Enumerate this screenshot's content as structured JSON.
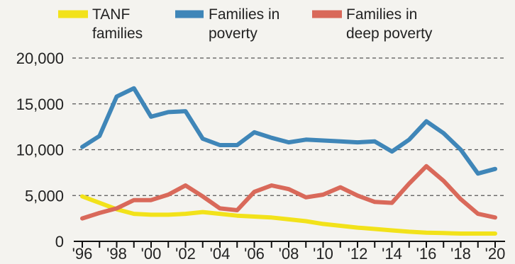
{
  "chart_data": {
    "type": "line",
    "x": [
      1996,
      1997,
      1998,
      1999,
      2000,
      2001,
      2002,
      2003,
      2004,
      2005,
      2006,
      2007,
      2008,
      2009,
      2010,
      2011,
      2012,
      2013,
      2014,
      2015,
      2016,
      2017,
      2018,
      2019,
      2020
    ],
    "x_tick_labels": [
      "'96",
      "'98",
      "'00",
      "'02",
      "'04",
      "'06",
      "'08",
      "'10",
      "'12",
      "'14",
      "'16",
      "'18",
      "'20"
    ],
    "y_tick_labels": [
      "20,000",
      "15,000",
      "10,000",
      "5,000",
      "0"
    ],
    "ylim": [
      0,
      20000
    ],
    "grid": "horizontal dashed",
    "legend_position": "top",
    "series": [
      {
        "name": "TANF families",
        "legend_lines": [
          "TANF",
          "families"
        ],
        "color": "#f2e21a",
        "values": [
          4900,
          4200,
          3500,
          3000,
          2900,
          2900,
          3000,
          3200,
          3000,
          2800,
          2700,
          2600,
          2400,
          2200,
          1900,
          1700,
          1500,
          1350,
          1200,
          1050,
          950,
          900,
          850,
          850,
          850
        ]
      },
      {
        "name": "Families in poverty",
        "legend_lines": [
          "Families in",
          "poverty"
        ],
        "color": "#3f86b8",
        "values": [
          10300,
          11500,
          15800,
          16700,
          13600,
          14100,
          14200,
          11200,
          10500,
          10500,
          11900,
          11300,
          10800,
          11100,
          11000,
          10900,
          10800,
          10900,
          9800,
          11100,
          13100,
          11800,
          10000,
          7400,
          7900
        ]
      },
      {
        "name": "Families in deep poverty",
        "legend_lines": [
          "Families in",
          "deep poverty"
        ],
        "color": "#d9695a",
        "values": [
          2500,
          3100,
          3600,
          4500,
          4500,
          5100,
          6100,
          4900,
          3600,
          3400,
          5400,
          6100,
          5700,
          4800,
          5100,
          5900,
          5000,
          4300,
          4200,
          6300,
          8200,
          6600,
          4600,
          3000,
          2600
        ]
      }
    ]
  }
}
